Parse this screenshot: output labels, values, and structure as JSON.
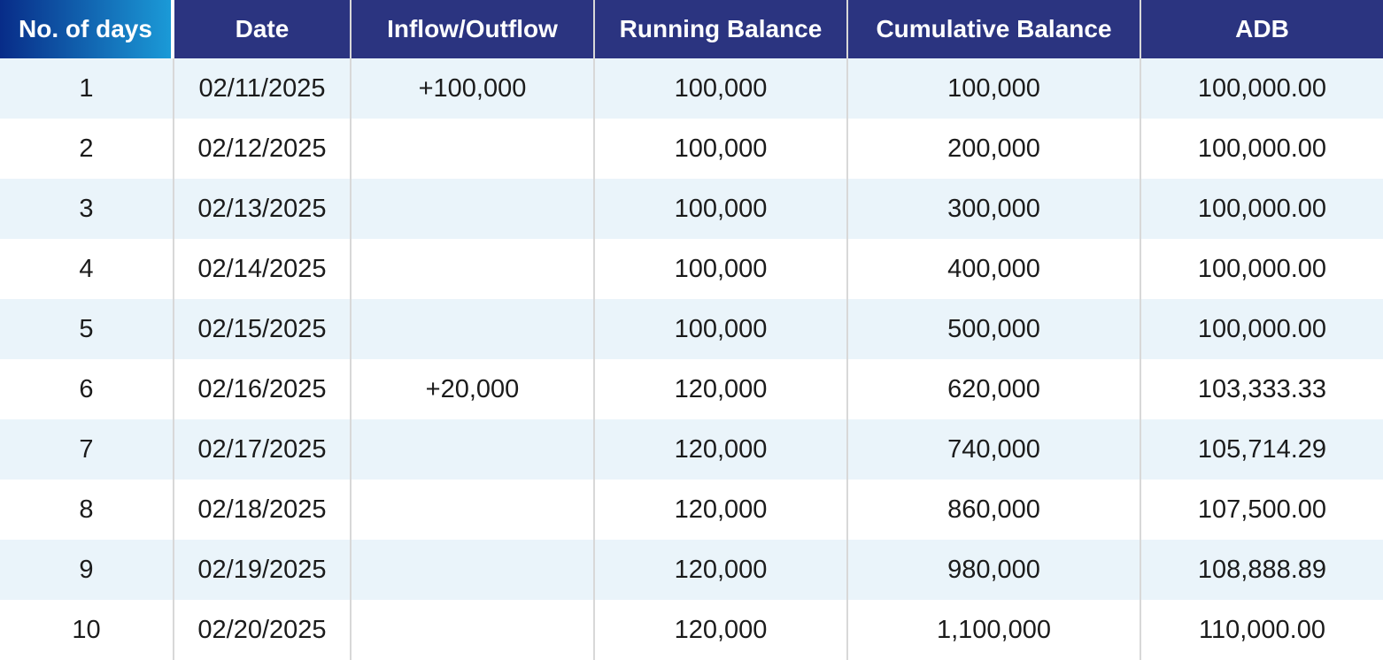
{
  "table": {
    "columns": [
      "No. of days",
      "Date",
      "Inflow/Outflow",
      "Running Balance",
      "Cumulative Balance",
      "ADB"
    ],
    "rows": [
      [
        "1",
        "02/11/2025",
        "+100,000",
        "100,000",
        "100,000",
        "100,000.00"
      ],
      [
        "2",
        "02/12/2025",
        "",
        "100,000",
        "200,000",
        "100,000.00"
      ],
      [
        "3",
        "02/13/2025",
        "",
        "100,000",
        "300,000",
        "100,000.00"
      ],
      [
        "4",
        "02/14/2025",
        "",
        "100,000",
        "400,000",
        "100,000.00"
      ],
      [
        "5",
        "02/15/2025",
        "",
        "100,000",
        "500,000",
        "100,000.00"
      ],
      [
        "6",
        "02/16/2025",
        "+20,000",
        "120,000",
        "620,000",
        "103,333.33"
      ],
      [
        "7",
        "02/17/2025",
        "",
        "120,000",
        "740,000",
        "105,714.29"
      ],
      [
        "8",
        "02/18/2025",
        "",
        "120,000",
        "860,000",
        "107,500.00"
      ],
      [
        "9",
        "02/19/2025",
        "",
        "120,000",
        "980,000",
        "108,888.89"
      ],
      [
        "10",
        "02/20/2025",
        "",
        "120,000",
        "1,100,000",
        "110,000.00"
      ]
    ]
  },
  "chart_data": {
    "type": "table",
    "title": "",
    "columns": [
      "No. of days",
      "Date",
      "Inflow/Outflow",
      "Running Balance",
      "Cumulative Balance",
      "ADB"
    ],
    "days": [
      1,
      2,
      3,
      4,
      5,
      6,
      7,
      8,
      9,
      10
    ],
    "dates": [
      "02/11/2025",
      "02/12/2025",
      "02/13/2025",
      "02/14/2025",
      "02/15/2025",
      "02/16/2025",
      "02/17/2025",
      "02/18/2025",
      "02/19/2025",
      "02/20/2025"
    ],
    "inflow_outflow": [
      100000,
      null,
      null,
      null,
      null,
      20000,
      null,
      null,
      null,
      null
    ],
    "running_balance": [
      100000,
      100000,
      100000,
      100000,
      100000,
      120000,
      120000,
      120000,
      120000,
      120000
    ],
    "cumulative_balance": [
      100000,
      200000,
      300000,
      400000,
      500000,
      620000,
      740000,
      860000,
      980000,
      1100000
    ],
    "adb": [
      100000.0,
      100000.0,
      100000.0,
      100000.0,
      100000.0,
      103333.33,
      105714.29,
      107500.0,
      108888.89,
      110000.0
    ]
  },
  "colors": {
    "header_bg": "#2B3480",
    "header_gradient_start": "#082C88",
    "header_gradient_end": "#1B9AD7",
    "row_alt_bg": "#EAF4FA",
    "row_plain_bg": "#FFFFFF",
    "border": "#D8D8D8",
    "text": "#1B1B1B",
    "header_text": "#FFFFFF"
  }
}
